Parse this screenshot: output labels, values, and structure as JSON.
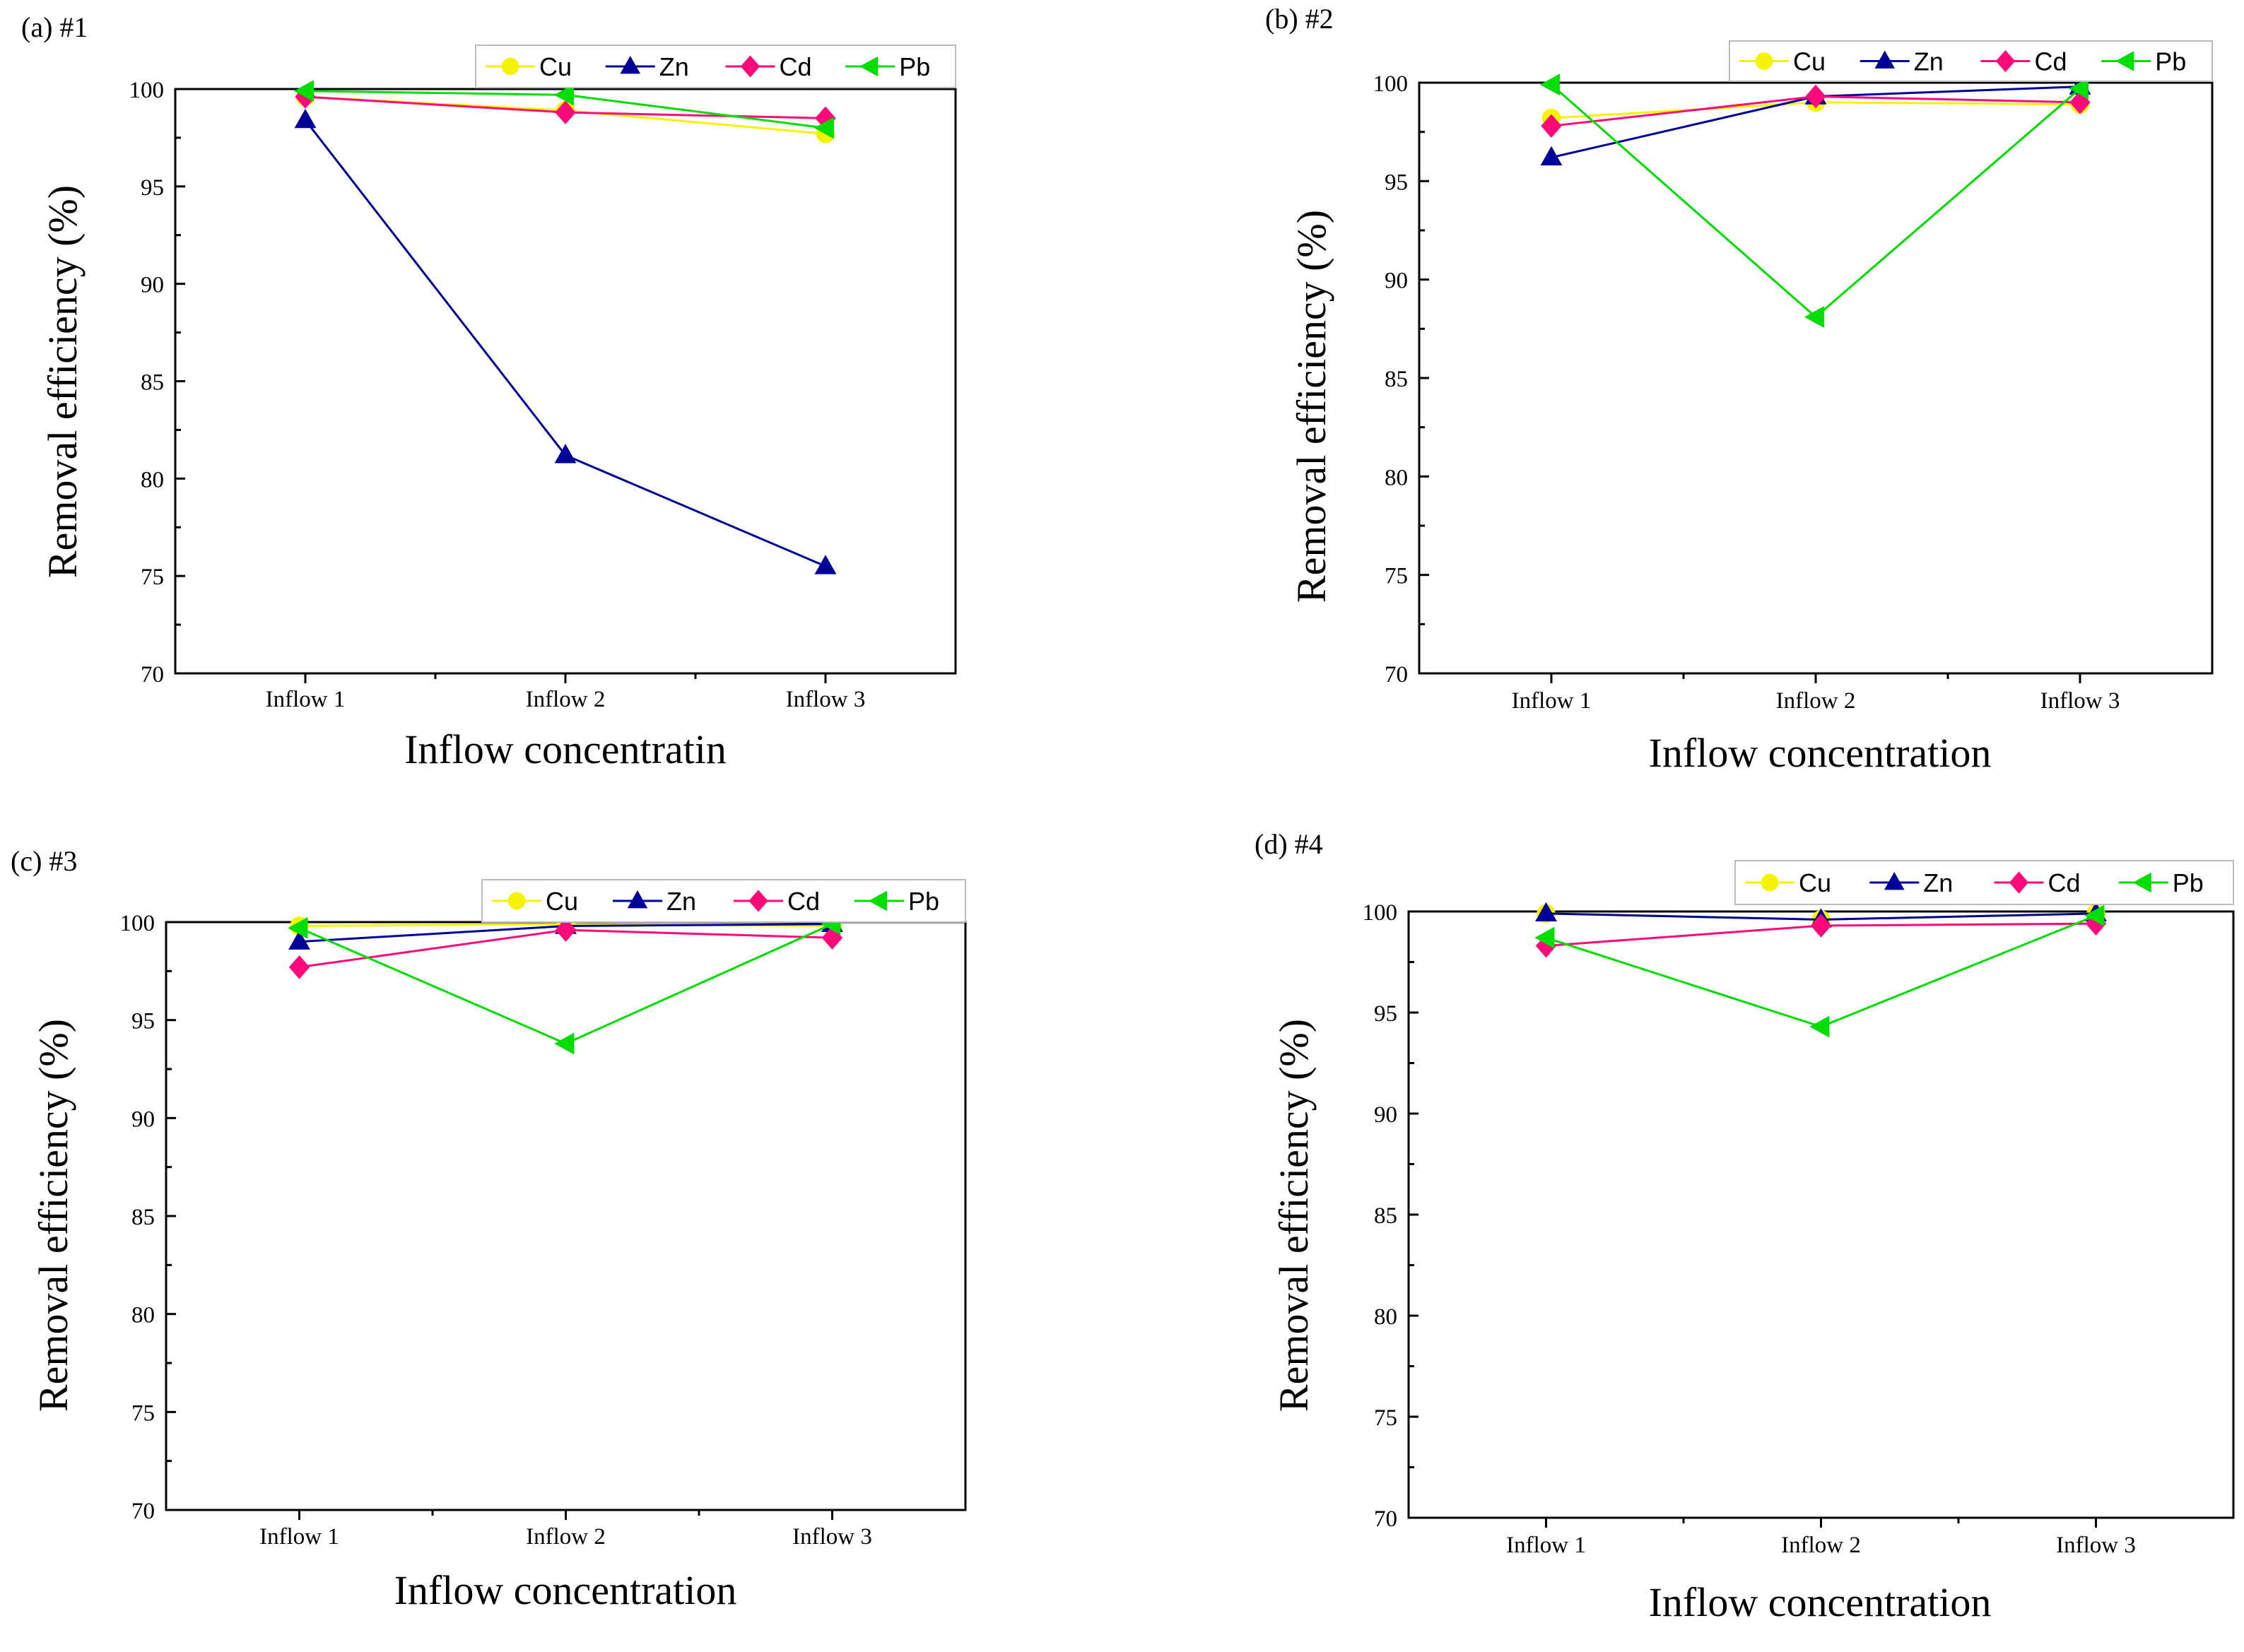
{
  "colors": {
    "Cu": "#f4f400",
    "Zn": "#000099",
    "Cd": "#ff0a7a",
    "Pb": "#00dd00",
    "axis": "#000000"
  },
  "chart_data": [
    {
      "type": "line",
      "panel_label": "(a) #1",
      "categories": [
        "Inflow 1",
        "Inflow 2",
        "Inflow 3"
      ],
      "xlabel": "Inflow concentratin",
      "ylabel": "Removal efficiency (%)",
      "ylim": [
        70,
        100
      ],
      "yticks": [
        70,
        75,
        80,
        85,
        90,
        95,
        100
      ],
      "legend_position": "top-right",
      "series": [
        {
          "name": "Cu",
          "marker": "circle",
          "values": [
            99.6,
            98.9,
            97.7
          ]
        },
        {
          "name": "Zn",
          "marker": "triangle-up",
          "values": [
            98.4,
            81.2,
            75.5
          ]
        },
        {
          "name": "Cd",
          "marker": "diamond",
          "values": [
            99.6,
            98.8,
            98.5
          ]
        },
        {
          "name": "Pb",
          "marker": "triangle-left",
          "values": [
            99.9,
            99.7,
            98.0
          ]
        }
      ]
    },
    {
      "type": "line",
      "panel_label": "(b) #2",
      "categories": [
        "Inflow 1",
        "Inflow 2",
        "Inflow 3"
      ],
      "xlabel": "Inflow concentration",
      "ylabel": "Removal efficiency (%)",
      "ylim": [
        70,
        100
      ],
      "yticks": [
        70,
        75,
        80,
        85,
        90,
        95,
        100
      ],
      "legend_position": "top-right",
      "series": [
        {
          "name": "Cu",
          "marker": "circle",
          "values": [
            98.2,
            99.0,
            98.9
          ]
        },
        {
          "name": "Zn",
          "marker": "triangle-up",
          "values": [
            96.2,
            99.3,
            99.8
          ]
        },
        {
          "name": "Cd",
          "marker": "diamond",
          "values": [
            97.8,
            99.3,
            99.0
          ]
        },
        {
          "name": "Pb",
          "marker": "triangle-left",
          "values": [
            99.9,
            88.1,
            99.7
          ]
        }
      ]
    },
    {
      "type": "line",
      "panel_label": "(c) #3",
      "categories": [
        "Inflow 1",
        "Inflow 2",
        "Inflow 3"
      ],
      "xlabel": "Inflow concentration",
      "ylabel": "Removal efficiency (%)",
      "ylim": [
        70,
        100
      ],
      "yticks": [
        70,
        75,
        80,
        85,
        90,
        95,
        100
      ],
      "legend_position": "top-right",
      "series": [
        {
          "name": "Cu",
          "marker": "circle",
          "values": [
            99.8,
            99.9,
            99.8
          ]
        },
        {
          "name": "Zn",
          "marker": "triangle-up",
          "values": [
            99.0,
            99.8,
            99.9
          ]
        },
        {
          "name": "Cd",
          "marker": "diamond",
          "values": [
            97.7,
            99.6,
            99.2
          ]
        },
        {
          "name": "Pb",
          "marker": "triangle-left",
          "values": [
            99.7,
            93.8,
            99.9
          ]
        }
      ]
    },
    {
      "type": "line",
      "panel_label": "(d) #4",
      "categories": [
        "Inflow 1",
        "Inflow 2",
        "Inflow 3"
      ],
      "xlabel": "Inflow concentration",
      "ylabel": "Removal efficiency (%)",
      "ylim": [
        70,
        100
      ],
      "yticks": [
        70,
        75,
        80,
        85,
        90,
        95,
        100
      ],
      "legend_position": "top-right",
      "series": [
        {
          "name": "Cu",
          "marker": "circle",
          "values": [
            99.9,
            99.6,
            99.9
          ]
        },
        {
          "name": "Zn",
          "marker": "triangle-up",
          "values": [
            99.9,
            99.6,
            99.9
          ]
        },
        {
          "name": "Cd",
          "marker": "diamond",
          "values": [
            98.3,
            99.3,
            99.4
          ]
        },
        {
          "name": "Pb",
          "marker": "triangle-left",
          "values": [
            98.7,
            94.3,
            99.8
          ]
        }
      ]
    }
  ]
}
